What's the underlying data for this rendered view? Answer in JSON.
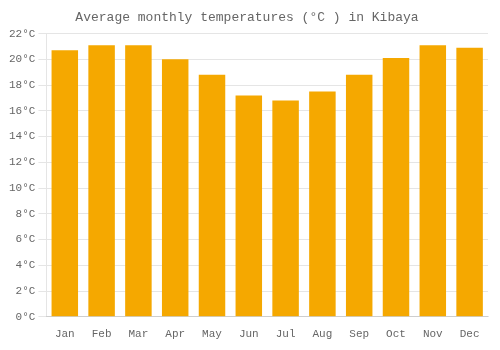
{
  "chart_data": {
    "type": "bar",
    "title": "Average monthly temperatures (°C ) in Kibaya",
    "categories": [
      "Jan",
      "Feb",
      "Mar",
      "Apr",
      "May",
      "Jun",
      "Jul",
      "Aug",
      "Sep",
      "Oct",
      "Nov",
      "Dec"
    ],
    "values": [
      20.7,
      21.1,
      21.1,
      20.0,
      18.8,
      17.2,
      16.8,
      17.5,
      18.8,
      20.1,
      21.1,
      20.9
    ],
    "color": "#F5A800",
    "ylim": [
      0,
      22
    ],
    "yticks": [
      {
        "value": 0,
        "label": "0°C"
      },
      {
        "value": 2,
        "label": "2°C"
      },
      {
        "value": 4,
        "label": "4°C"
      },
      {
        "value": 6,
        "label": "6°C"
      },
      {
        "value": 8,
        "label": "8°C"
      },
      {
        "value": 10,
        "label": "10°C"
      },
      {
        "value": 12,
        "label": "12°C"
      },
      {
        "value": 14,
        "label": "14°C"
      },
      {
        "value": 16,
        "label": "16°C"
      },
      {
        "value": 18,
        "label": "18°C"
      },
      {
        "value": 20,
        "label": "20°C"
      },
      {
        "value": 22,
        "label": "22°C"
      }
    ],
    "grid": true
  }
}
